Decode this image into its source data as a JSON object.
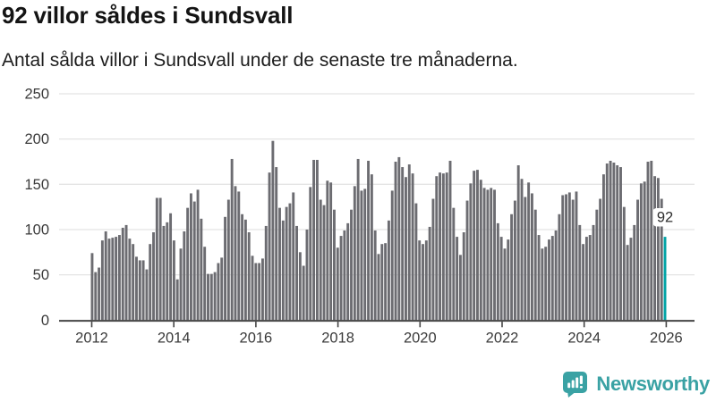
{
  "header": {
    "title": "92 villor såldes i Sundsvall",
    "subtitle": "Antal sålda villor i Sundsvall under de senaste tre månaderna."
  },
  "chart_data": {
    "type": "bar",
    "title": "92 villor såldes i Sundsvall",
    "subtitle": "Antal sålda villor i Sundsvall under de senaste tre månaderna.",
    "xlabel": "",
    "ylabel": "",
    "x_tick_labels": [
      "2012",
      "2014",
      "2016",
      "2018",
      "2020",
      "2022",
      "2024",
      "2026"
    ],
    "y_ticks": [
      0,
      50,
      100,
      150,
      200,
      250
    ],
    "ylim": [
      0,
      250
    ],
    "grid": true,
    "legend": "none",
    "bar_color": "#6c6c71",
    "series_note": "monthly values Jan 2012 - Dec 2025, last bar highlighted",
    "values": [
      74,
      53,
      58,
      88,
      98,
      90,
      91,
      92,
      94,
      102,
      105,
      90,
      84,
      70,
      66,
      66,
      56,
      84,
      97,
      135,
      135,
      104,
      108,
      118,
      88,
      45,
      79,
      98,
      124,
      140,
      131,
      144,
      112,
      81,
      51,
      51,
      53,
      63,
      69,
      114,
      133,
      178,
      148,
      142,
      117,
      111,
      97,
      71,
      63,
      63,
      68,
      104,
      163,
      198,
      169,
      124,
      110,
      125,
      129,
      141,
      104,
      75,
      60,
      100,
      147,
      177,
      177,
      133,
      127,
      154,
      152,
      122,
      80,
      93,
      99,
      107,
      122,
      148,
      178,
      143,
      145,
      176,
      161,
      99,
      73,
      84,
      85,
      110,
      143,
      175,
      180,
      169,
      158,
      172,
      162,
      129,
      88,
      84,
      88,
      103,
      134,
      159,
      163,
      162,
      163,
      176,
      124,
      92,
      72,
      97,
      132,
      151,
      165,
      166,
      155,
      146,
      144,
      146,
      144,
      107,
      92,
      79,
      89,
      117,
      132,
      171,
      156,
      136,
      152,
      140,
      122,
      94,
      79,
      81,
      89,
      93,
      99,
      117,
      138,
      139,
      141,
      133,
      142,
      105,
      84,
      92,
      94,
      105,
      122,
      134,
      161,
      173,
      176,
      174,
      171,
      169,
      125,
      83,
      91,
      105,
      133,
      151,
      153,
      175,
      176,
      159,
      157,
      134,
      92
    ],
    "highlight": {
      "index": 168,
      "value": 92,
      "label": "92",
      "color": "#00a3a6"
    }
  },
  "annotation": {
    "label": "92"
  },
  "branding": {
    "name": "Newsworthy",
    "color": "#3aa2a4"
  },
  "colors": {
    "bar_gray": "#6c6c71",
    "accent_teal": "#00a3a6",
    "brand_teal": "#3aa2a4",
    "grid_line": "#e4e4e4",
    "axis_line": "#454545",
    "tick_text": "#3a3a3a",
    "title_text": "#141414"
  }
}
